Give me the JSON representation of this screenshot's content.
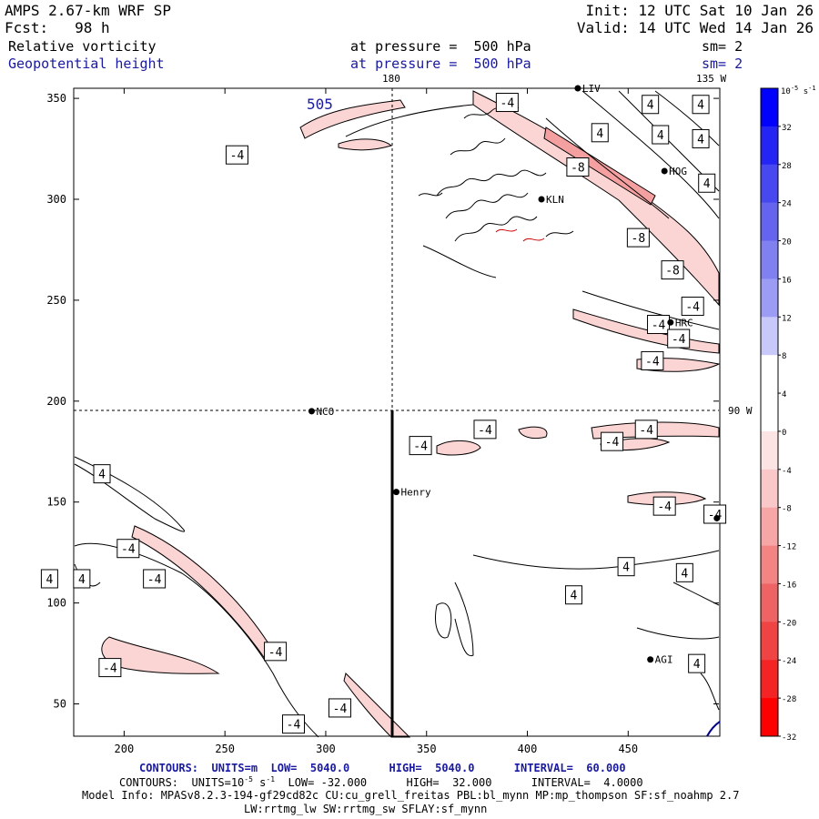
{
  "header": {
    "title": "AMPS 2.67-km WRF SP",
    "forecast": "Fcst:   98 h",
    "init": "Init: 12 UTC Sat 10 Jan 26",
    "valid": "Valid: 14 UTC Wed 14 Jan 26",
    "field1": "Relative vorticity",
    "field1_level": "at pressure =  500 hPa",
    "field1_sm": "sm= 2",
    "field2": "Geopotential height",
    "field2_level": "at pressure =  500 hPa",
    "field2_sm": "sm= 2"
  },
  "map_labels": {
    "top_180": "180",
    "top_135w": "135 W",
    "right_90w": "90 W",
    "height_label": "505"
  },
  "stations": [
    {
      "name": "LIV",
      "x": 425,
      "y": 355
    },
    {
      "name": "HOG",
      "x": 468,
      "y": 314
    },
    {
      "name": "KLN",
      "x": 407,
      "y": 300
    },
    {
      "name": "HRC",
      "x": 471,
      "y": 239
    },
    {
      "name": "NCO",
      "x": 293,
      "y": 195
    },
    {
      "name": "Henry",
      "x": 335,
      "y": 155
    },
    {
      "name": "AGI",
      "x": 461,
      "y": 72
    },
    {
      "name": "",
      "x": 494,
      "y": 142
    }
  ],
  "footer": {
    "line1": "CONTOURS:  UNITS=m  LOW=  5040.0      HIGH=  5040.0      INTERVAL=  60.000",
    "line2_a": "CONTOURS:  UNITS=10",
    "line2_exp": "-5",
    "line2_b": " s",
    "line2_exp2": "-1",
    "line2_c": "  LOW= -32.000      HIGH=  32.000      INTERVAL=  4.0000",
    "line3": "Model Info: MPASv8.2.3-194-gf29cd82c CU:cu_grell_freitas PBL:bl_mynn MP:mp_thompson SF:sf_noahmp 2.7",
    "line4": "LW:rrtmg_lw SW:rrtmg_sw SFLAY:sf_mynn"
  },
  "colorbar": {
    "unit": "10^-5 s^-1",
    "unit_base": "10",
    "unit_exp": "-5",
    "unit_s": "s",
    "unit_exp2": "-1",
    "labels": [
      "32",
      "28",
      "24",
      "20",
      "16",
      "12",
      "8",
      "4",
      "0",
      "-4",
      "-8",
      "-12",
      "-16",
      "-20",
      "-24",
      "-28",
      "-32"
    ],
    "colors": [
      "#0000ff",
      "#2424f4",
      "#4848f0",
      "#6464ee",
      "#8080f0",
      "#9c9cf4",
      "#c8c8fa",
      "#ffffff",
      "#ffffff",
      "#fde4e4",
      "#fac8c8",
      "#f6a6a6",
      "#f28484",
      "#ee6464",
      "#f04444",
      "#f42424",
      "#ff0000"
    ]
  },
  "chart_data": {
    "type": "contour_map",
    "title": "Relative vorticity / Geopotential height at 500 hPa",
    "xlabel": "",
    "ylabel": "",
    "xlim": [
      175,
      495
    ],
    "ylim": [
      34,
      355
    ],
    "x_ticks": [
      200,
      250,
      300,
      350,
      400,
      450
    ],
    "y_ticks": [
      50,
      100,
      150,
      200,
      250,
      300,
      350
    ],
    "contour_labels": [
      {
        "text": "-4",
        "x": 390,
        "y": 348
      },
      {
        "text": "4",
        "x": 486,
        "y": 347
      },
      {
        "text": "4",
        "x": 461,
        "y": 347
      },
      {
        "text": "4",
        "x": 436,
        "y": 333
      },
      {
        "text": "4",
        "x": 466,
        "y": 332
      },
      {
        "text": "4",
        "x": 486,
        "y": 330
      },
      {
        "text": "-4",
        "x": 256,
        "y": 322
      },
      {
        "text": "-8",
        "x": 425,
        "y": 316
      },
      {
        "text": "4",
        "x": 489,
        "y": 308
      },
      {
        "text": "-8",
        "x": 455,
        "y": 281
      },
      {
        "text": "-8",
        "x": 472,
        "y": 265
      },
      {
        "text": "-4",
        "x": 482,
        "y": 247
      },
      {
        "text": "-4",
        "x": 465,
        "y": 238
      },
      {
        "text": "-4",
        "x": 475,
        "y": 231
      },
      {
        "text": "-4",
        "x": 462,
        "y": 220
      },
      {
        "text": "-4",
        "x": 379,
        "y": 186
      },
      {
        "text": "-4",
        "x": 459,
        "y": 186
      },
      {
        "text": "-4",
        "x": 347,
        "y": 178
      },
      {
        "text": "-4",
        "x": 442,
        "y": 180
      },
      {
        "text": "4",
        "x": 189,
        "y": 164
      },
      {
        "text": "-4",
        "x": 468,
        "y": 148
      },
      {
        "text": "-4",
        "x": 493,
        "y": 144
      },
      {
        "text": "-4",
        "x": 202,
        "y": 127
      },
      {
        "text": "4",
        "x": 449,
        "y": 118
      },
      {
        "text": "4",
        "x": 179,
        "y": 112
      },
      {
        "text": "4",
        "x": 163,
        "y": 112
      },
      {
        "text": "-4",
        "x": 215,
        "y": 112
      },
      {
        "text": "4",
        "x": 478,
        "y": 115
      },
      {
        "text": "4",
        "x": 423,
        "y": 104
      },
      {
        "text": "-4",
        "x": 275,
        "y": 76
      },
      {
        "text": "-4",
        "x": 193,
        "y": 68
      },
      {
        "text": "4",
        "x": 484,
        "y": 70
      },
      {
        "text": "-4",
        "x": 307,
        "y": 48
      },
      {
        "text": "-4",
        "x": 284,
        "y": 40
      }
    ]
  }
}
